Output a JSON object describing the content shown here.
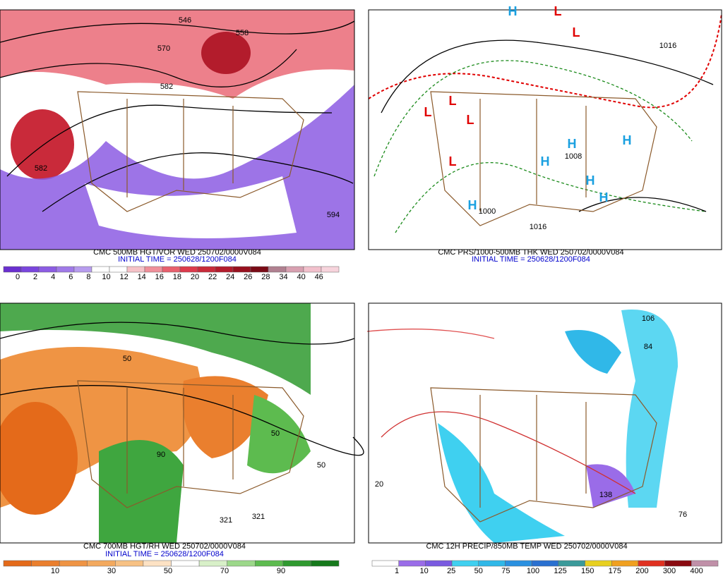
{
  "panels": [
    {
      "title": "CMC 500MB HGT/VOR WED 250702/0000V084",
      "subtitle": "INITIAL TIME = 250628/1200F084",
      "scale": {
        "labels": [
          0,
          2,
          4,
          6,
          8,
          10,
          12,
          14,
          16,
          18,
          20,
          22,
          24,
          26,
          28,
          34,
          40,
          46
        ],
        "colors": [
          "#6a2fd0",
          "#7a45dd",
          "#8c5ce3",
          "#a07ae8",
          "#b79cee",
          "#ffffff",
          "#ffffff",
          "#f6c2c8",
          "#f08f9a",
          "#e8606e",
          "#dd3a4c",
          "#c92a3a",
          "#b31c2c",
          "#98101f",
          "#7a0a16",
          "#b08090",
          "#d8a0b0",
          "#f2c0cc",
          "#f7d4dc"
        ]
      },
      "annotations": [
        "546",
        "558",
        "570",
        "582",
        "582",
        "594"
      ]
    },
    {
      "title": "CMC PRS/1000-500MB THK WED 250702/0000V084",
      "subtitle": "INITIAL TIME = 250628/1200F084",
      "annotations": [
        "H",
        "L",
        "L",
        "L",
        "L",
        "L",
        "L",
        "H",
        "H",
        "H",
        "H",
        "H",
        "H",
        "1016",
        "1008",
        "1000",
        "1016"
      ]
    },
    {
      "title": "CMC 700MB HGT/RH WED 250702/0000V084",
      "subtitle": "INITIAL TIME = 250628/1200F084",
      "scale": {
        "labels": [
          10,
          30,
          50,
          70,
          90
        ],
        "colors": [
          "#e46a1a",
          "#ea7f2e",
          "#ef9444",
          "#f3a95e",
          "#f7c184",
          "#fde2c4",
          "#ffffff",
          "#d8f0c8",
          "#9cd88a",
          "#5dbb4f",
          "#2f9a2f",
          "#167a1c"
        ]
      },
      "annotations": [
        "50",
        "50",
        "90",
        "321",
        "321",
        "50"
      ]
    },
    {
      "title": "CMC 12H PRECIP/850MB TEMP WED 250702/0000V084",
      "scale": {
        "labels": [
          1,
          10,
          25,
          50,
          75,
          100,
          125,
          150,
          175,
          200,
          300,
          400
        ],
        "colors": [
          "#ffffff",
          "#9a6ce8",
          "#7a5ae0",
          "#3fd0f0",
          "#30b8e8",
          "#2a90e0",
          "#2a70d0",
          "#3a9a9a",
          "#e8d020",
          "#f0a020",
          "#e03020",
          "#8a0a10",
          "#c090a8"
        ]
      },
      "annotations": [
        "106",
        "84",
        "138",
        "76",
        "20"
      ]
    }
  ]
}
